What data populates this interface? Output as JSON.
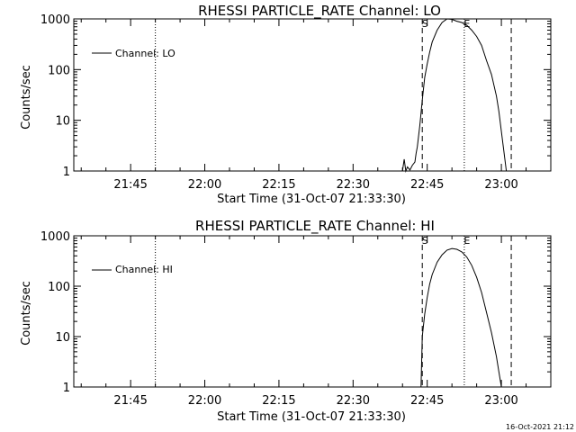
{
  "chart_data": [
    {
      "type": "line",
      "title": "RHESSI PARTICLE_RATE Channel: LO",
      "xlabel": "Start Time (31-Oct-07 21:33:30)",
      "ylabel": "Counts/sec",
      "y_scale": "log",
      "ylim": [
        1,
        1000
      ],
      "xlim": [
        "21:33:30",
        "23:10:00"
      ],
      "x_ticks": [
        "21:45",
        "22:00",
        "22:15",
        "22:30",
        "22:45",
        "23:00"
      ],
      "y_ticks": [
        "1",
        "10",
        "100",
        "1000"
      ],
      "legend": {
        "position": "top-left",
        "entries": [
          "Channel: LO"
        ]
      },
      "markers": [
        {
          "label": "",
          "time": "21:50:00",
          "style": "dotted"
        },
        {
          "label": "S",
          "time": "22:44:00",
          "style": "dashed"
        },
        {
          "label": "E",
          "time": "22:52:30",
          "style": "dotted"
        },
        {
          "label": "",
          "time": "23:02:00",
          "style": "dashed"
        },
        {
          "label": "",
          "time": "23:10:00",
          "style": "dotted"
        }
      ],
      "series": [
        {
          "name": "Channel: LO",
          "x": [
            "22:40:00",
            "22:40:20",
            "22:40:40",
            "22:41:00",
            "22:41:30",
            "22:42:00",
            "22:42:30",
            "22:42:45",
            "22:43:00",
            "22:43:30",
            "22:44:00",
            "22:44:30",
            "22:45:00",
            "22:45:30",
            "22:46:00",
            "22:47:00",
            "22:48:00",
            "22:49:00",
            "22:50:00",
            "22:51:00",
            "22:52:00",
            "22:52:30",
            "22:53:00",
            "22:54:00",
            "22:55:00",
            "22:56:00",
            "22:57:00",
            "22:58:00",
            "22:59:00",
            "22:59:30",
            "23:00:00",
            "23:00:30",
            "23:01:00"
          ],
          "y": [
            1,
            1.7,
            1,
            1.2,
            1.05,
            1.3,
            1.5,
            2.2,
            3,
            8,
            25,
            70,
            130,
            220,
            350,
            600,
            850,
            1000,
            980,
            900,
            850,
            800,
            750,
            600,
            450,
            300,
            150,
            80,
            30,
            15,
            6,
            2.5,
            1
          ]
        }
      ]
    },
    {
      "type": "line",
      "title": "RHESSI PARTICLE_RATE Channel: HI",
      "xlabel": "Start Time (31-Oct-07 21:33:30)",
      "ylabel": "Counts/sec",
      "y_scale": "log",
      "ylim": [
        1,
        1000
      ],
      "xlim": [
        "21:33:30",
        "23:10:00"
      ],
      "x_ticks": [
        "21:45",
        "22:00",
        "22:15",
        "22:30",
        "22:45",
        "23:00"
      ],
      "y_ticks": [
        "1",
        "10",
        "100",
        "1000"
      ],
      "legend": {
        "position": "top-left",
        "entries": [
          "Channel: HI"
        ]
      },
      "markers": [
        {
          "label": "",
          "time": "21:50:00",
          "style": "dotted"
        },
        {
          "label": "S",
          "time": "22:44:00",
          "style": "dashed"
        },
        {
          "label": "E",
          "time": "22:52:30",
          "style": "dotted"
        },
        {
          "label": "",
          "time": "23:02:00",
          "style": "dashed"
        },
        {
          "label": "",
          "time": "23:10:00",
          "style": "dotted"
        }
      ],
      "series": [
        {
          "name": "Channel: HI",
          "x": [
            "22:43:45",
            "22:44:00",
            "22:44:30",
            "22:45:00",
            "22:45:30",
            "22:46:00",
            "22:47:00",
            "22:48:00",
            "22:49:00",
            "22:50:00",
            "22:51:00",
            "22:52:00",
            "22:53:00",
            "22:54:00",
            "22:55:00",
            "22:56:00",
            "22:57:00",
            "22:58:00",
            "22:59:00",
            "22:59:30",
            "23:00:00"
          ],
          "y": [
            1,
            10,
            28,
            60,
            110,
            170,
            300,
            420,
            520,
            560,
            540,
            480,
            380,
            260,
            150,
            75,
            30,
            12,
            4,
            2,
            1
          ]
        }
      ]
    }
  ],
  "timestamp": "16-Oct-2021 21:12"
}
